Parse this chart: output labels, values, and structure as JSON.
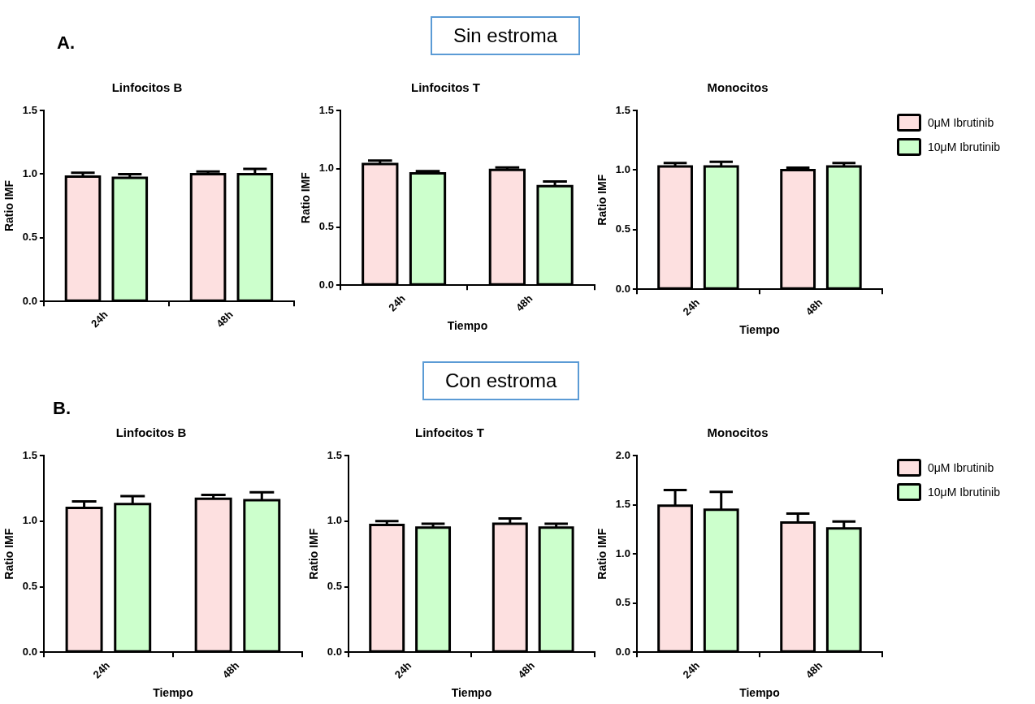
{
  "chart_data": [
    {
      "type": "bar",
      "title": "Linfocitos B",
      "ylabel": "Ratio IMF",
      "categories": [
        "24h",
        "48h"
      ],
      "ylim": [
        0,
        1.5
      ],
      "yticks": [
        {
          "value": 0,
          "label": "0.0"
        },
        {
          "value": 0.5,
          "label": "0.5"
        },
        {
          "value": 1,
          "label": "1.0"
        },
        {
          "value": 1.5,
          "label": "1.5"
        }
      ],
      "annotations": [
        "A.",
        "Sin estroma"
      ],
      "series": [
        {
          "color": "#fde0e0",
          "values": [
            0.98,
            1.0
          ],
          "errors": [
            0.03,
            0.02
          ]
        },
        {
          "color": "#ccffcc",
          "values": [
            0.97,
            1.0
          ],
          "errors": [
            0.03,
            0.04
          ]
        }
      ]
    },
    {
      "type": "bar",
      "title": "Linfocitos T",
      "xlabel": "Tiempo",
      "ylabel": "Ratio IMF",
      "categories": [
        "24h",
        "48h"
      ],
      "ylim": [
        0,
        1.5
      ],
      "yticks": [
        {
          "value": 0,
          "label": "0.0"
        },
        {
          "value": 0.5,
          "label": "0.5"
        },
        {
          "value": 1,
          "label": "1.0"
        },
        {
          "value": 1.5,
          "label": "1.5"
        }
      ],
      "series": [
        {
          "color": "#fde0e0",
          "values": [
            1.04,
            0.99
          ],
          "errors": [
            0.03,
            0.02
          ]
        },
        {
          "color": "#ccffcc",
          "values": [
            0.96,
            0.85
          ],
          "errors": [
            0.02,
            0.04
          ]
        }
      ]
    },
    {
      "type": "bar",
      "title": "Monocitos",
      "xlabel": "Tiempo",
      "ylabel": "Ratio IMF",
      "categories": [
        "24h",
        "48h"
      ],
      "ylim": [
        0,
        1.5
      ],
      "yticks": [
        {
          "value": 0,
          "label": "0.0"
        },
        {
          "value": 0.5,
          "label": "0.5"
        },
        {
          "value": 1,
          "label": "1.0"
        },
        {
          "value": 1.5,
          "label": "1.5"
        }
      ],
      "legend": "right",
      "series": [
        {
          "name": "0μM Ibrutinib",
          "color": "#fde0e0",
          "values": [
            1.03,
            1.0
          ],
          "errors": [
            0.03,
            0.02
          ]
        },
        {
          "name": "10μM Ibrutinib",
          "color": "#ccffcc",
          "values": [
            1.03,
            1.03
          ],
          "errors": [
            0.04,
            0.03
          ]
        }
      ]
    },
    {
      "type": "bar",
      "title": "Linfocitos B",
      "xlabel": "Tiempo",
      "ylabel": "Ratio IMF",
      "categories": [
        "24h",
        "48h"
      ],
      "ylim": [
        0,
        1.5
      ],
      "yticks": [
        {
          "value": 0,
          "label": "0.0"
        },
        {
          "value": 0.5,
          "label": "0.5"
        },
        {
          "value": 1,
          "label": "1.0"
        },
        {
          "value": 1.5,
          "label": "1.5"
        }
      ],
      "annotations": [
        "B.",
        "Con estroma"
      ],
      "series": [
        {
          "color": "#fde0e0",
          "values": [
            1.1,
            1.17
          ],
          "errors": [
            0.05,
            0.03
          ]
        },
        {
          "color": "#ccffcc",
          "values": [
            1.13,
            1.16
          ],
          "errors": [
            0.06,
            0.06
          ]
        }
      ]
    },
    {
      "type": "bar",
      "title": "Linfocitos T",
      "xlabel": "Tiempo",
      "ylabel": "Ratio IMF",
      "categories": [
        "24h",
        "48h"
      ],
      "ylim": [
        0,
        1.5
      ],
      "yticks": [
        {
          "value": 0,
          "label": "0.0"
        },
        {
          "value": 0.5,
          "label": "0.5"
        },
        {
          "value": 1,
          "label": "1.0"
        },
        {
          "value": 1.5,
          "label": "1.5"
        }
      ],
      "series": [
        {
          "color": "#fde0e0",
          "values": [
            0.97,
            0.98
          ],
          "errors": [
            0.03,
            0.04
          ]
        },
        {
          "color": "#ccffcc",
          "values": [
            0.95,
            0.95
          ],
          "errors": [
            0.03,
            0.03
          ]
        }
      ]
    },
    {
      "type": "bar",
      "title": "Monocitos",
      "xlabel": "Tiempo",
      "ylabel": "Ratio IMF",
      "categories": [
        "24h",
        "48h"
      ],
      "ylim": [
        0,
        2.0
      ],
      "yticks": [
        {
          "value": 0,
          "label": "0.0"
        },
        {
          "value": 0.5,
          "label": "0.5"
        },
        {
          "value": 1,
          "label": "1.0"
        },
        {
          "value": 1.5,
          "label": "1.5"
        },
        {
          "value": 2,
          "label": "2.0"
        }
      ],
      "legend": "right",
      "series": [
        {
          "name": "0μM Ibrutinib",
          "color": "#fde0e0",
          "values": [
            1.49,
            1.32
          ],
          "errors": [
            0.16,
            0.09
          ]
        },
        {
          "name": "10μM Ibrutinib",
          "color": "#ccffcc",
          "values": [
            1.45,
            1.26
          ],
          "errors": [
            0.18,
            0.07
          ]
        }
      ]
    }
  ]
}
